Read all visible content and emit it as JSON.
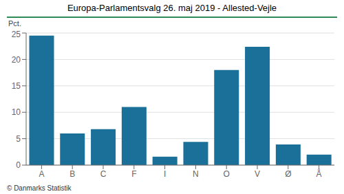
{
  "chart_data": {
    "type": "bar",
    "title": "Europa-Parlamentsvalg 26. maj 2019 - Allested-Vejle",
    "ylabel": "Pct.",
    "annotations": [
      "© Danmarks Statistik"
    ],
    "categories": [
      "A",
      "B",
      "C",
      "F",
      "I",
      "N",
      "O",
      "V",
      "Ø",
      "Å"
    ],
    "values": [
      24.5,
      6.0,
      6.8,
      11.0,
      1.6,
      4.4,
      18.0,
      22.4,
      3.9,
      2.0
    ],
    "color": "#1a7099",
    "ylim": [
      0,
      25
    ],
    "yticks": [
      0,
      5,
      10,
      15,
      20,
      25
    ],
    "grid": true
  }
}
